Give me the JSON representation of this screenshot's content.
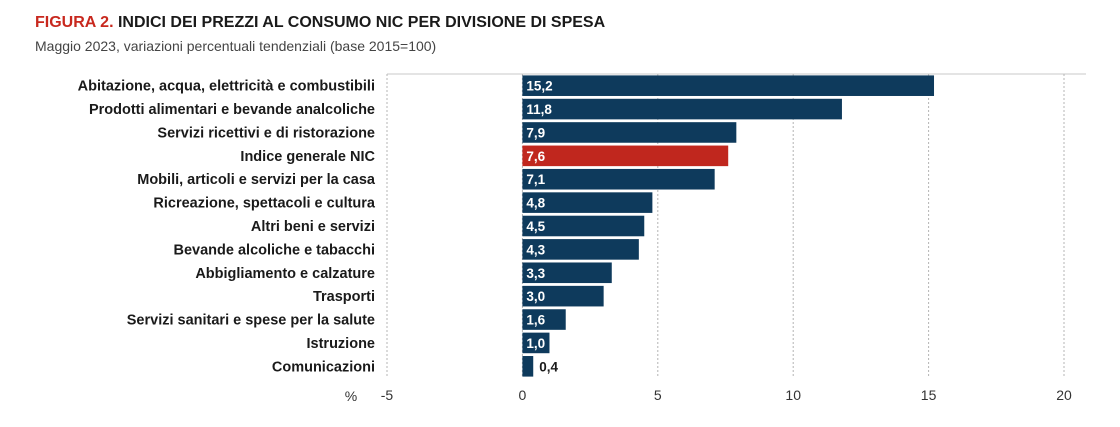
{
  "header": {
    "figure_label": "FIGURA 2.",
    "title": "INDICI DEI PREZZI AL CONSUMO NIC PER DIVISIONE DI SPESA",
    "subtitle": "Maggio 2023, variazioni percentuali tendenziali (base 2015=100)"
  },
  "colors": {
    "bar": "#0e3a5c",
    "highlight": "#c0271e",
    "figure_label": "#c8281e"
  },
  "chart_data": {
    "type": "bar",
    "orientation": "horizontal",
    "categories": [
      "Abitazione, acqua, elettricità e combustibili",
      "Prodotti alimentari e bevande analcoliche",
      "Servizi ricettivi e di ristorazione",
      "Indice generale NIC",
      "Mobili, articoli e servizi per la casa",
      "Ricreazione, spettacoli e cultura",
      "Altri beni e servizi",
      "Bevande alcoliche e tabacchi",
      "Abbigliamento e calzature",
      "Trasporti",
      "Servizi sanitari e spese per la salute",
      "Istruzione",
      "Comunicazioni"
    ],
    "values": [
      15.2,
      11.8,
      7.9,
      7.6,
      7.1,
      4.8,
      4.5,
      4.3,
      3.3,
      3.0,
      1.6,
      1.0,
      0.4
    ],
    "value_labels": [
      "15,2",
      "11,8",
      "7,9",
      "7,6",
      "7,1",
      "4,8",
      "4,5",
      "4,3",
      "3,3",
      "3,0",
      "1,6",
      "1,0",
      "0,4"
    ],
    "highlight_category": "Indice generale NIC",
    "xlim": [
      -5,
      20
    ],
    "xticks": [
      -5,
      0,
      5,
      10,
      15,
      20
    ],
    "xtick_labels": [
      "-5",
      "0",
      "5",
      "10",
      "15",
      "20"
    ],
    "xlabel": "%",
    "grid": "vertical dashed"
  }
}
